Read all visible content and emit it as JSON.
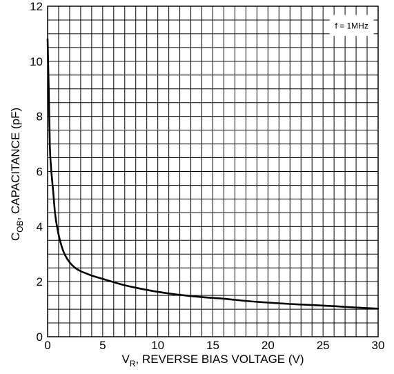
{
  "chart_data": {
    "type": "line",
    "title": "",
    "xlabel": {
      "main": "V",
      "sub": "R",
      "rest": ", REVERSE BIAS VOLTAGE (V)"
    },
    "ylabel": {
      "main": "C",
      "sub": "OB",
      "rest": ", CAPACITANCE (pF)"
    },
    "xlim": [
      0,
      30
    ],
    "ylim": [
      0,
      12
    ],
    "x_ticks": [
      0,
      5,
      10,
      15,
      20,
      25,
      30
    ],
    "y_ticks": [
      0,
      2,
      4,
      6,
      8,
      10,
      12
    ],
    "x_tick_labels": [
      "0",
      "5",
      "10",
      "15",
      "20",
      "25",
      "30"
    ],
    "y_tick_labels": [
      "0",
      "2",
      "4",
      "6",
      "8",
      "10",
      "12"
    ],
    "grid": true,
    "legend": "none",
    "annotation": "f = 1MHz",
    "series": [
      {
        "color": "#000000",
        "x": [
          0,
          0.1,
          0.2,
          0.3,
          0.5,
          0.7,
          1.0,
          1.3,
          1.6,
          2.0,
          2.5,
          3.0,
          3.5,
          4.0,
          5.0,
          6.0,
          7.0,
          8.0,
          10.0,
          12.0,
          14.0,
          16.0,
          18.0,
          20.0,
          22.0,
          24.0,
          26.0,
          28.0,
          30.0
        ],
        "y": [
          10.8,
          9.0,
          7.0,
          6.2,
          5.3,
          4.4,
          3.7,
          3.25,
          2.95,
          2.7,
          2.5,
          2.38,
          2.3,
          2.22,
          2.1,
          1.98,
          1.87,
          1.78,
          1.63,
          1.52,
          1.44,
          1.38,
          1.3,
          1.24,
          1.19,
          1.15,
          1.11,
          1.06,
          1.02
        ]
      }
    ]
  }
}
